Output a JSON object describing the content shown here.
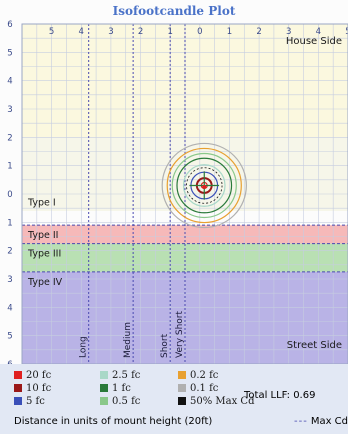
{
  "chart_data": {
    "type": "isofootcandle",
    "title": "Isofootcandle Plot",
    "x_axis_labels": [
      "5",
      "4",
      "3",
      "2",
      "1",
      "0",
      "1",
      "2",
      "3",
      "4",
      "5"
    ],
    "y_axis_labels": [
      "6",
      "5",
      "4",
      "3",
      "2",
      "1",
      "0",
      "1",
      "2",
      "3",
      "4",
      "5",
      "6"
    ],
    "xlim": [
      -6,
      5
    ],
    "ylim": [
      -6,
      6
    ],
    "house_side_label": "House Side",
    "street_side_label": "Street Side",
    "luminaire": {
      "x": 0.15,
      "y": 0.3
    },
    "max_cd_point": {
      "x": 0.15,
      "y": 0.25
    },
    "isolines": [
      {
        "value_fc": 20,
        "radius": 0.1,
        "color": "#e02020"
      },
      {
        "value_fc": 10,
        "radius": 0.25,
        "color": "#9a1818"
      },
      {
        "value_fc": 5,
        "radius": 0.45,
        "color": "#3a4fb8"
      },
      {
        "value_fc": 2.5,
        "radius": 0.7,
        "color": "#a8d8c8"
      },
      {
        "value_fc": 1,
        "radius": 0.92,
        "color": "#2a7a3a"
      },
      {
        "value_fc": 0.5,
        "radius": 1.08,
        "color": "#8ac88a"
      },
      {
        "value_fc": 0.2,
        "radius": 1.25,
        "color": "#e8a030"
      },
      {
        "value_fc": 0.1,
        "radius": 1.42,
        "color": "#b0b0b0"
      }
    ],
    "type_bands": [
      {
        "label": "Type I",
        "y_from": -0.6,
        "y_to": 2.0,
        "color": "#f4f4e4"
      },
      {
        "label": "Type II",
        "y_from": -1.75,
        "y_to": -1.1,
        "color": "#f4a8a8"
      },
      {
        "label": "Type III",
        "y_from": -2.75,
        "y_to": -1.75,
        "color": "#a8d8a0"
      },
      {
        "label": "Type IV",
        "y_from": -6.0,
        "y_to": -2.75,
        "color": "#a8a0e0"
      }
    ],
    "range_lines": [
      {
        "label": "Long",
        "x": -3.75
      },
      {
        "label": "Medium",
        "x": -2.25
      },
      {
        "label": "Short",
        "x": -1.0
      },
      {
        "label": "Very Short",
        "x": -0.5
      }
    ],
    "legend": [
      {
        "label": "20 fc",
        "color": "#e02020"
      },
      {
        "label": "10 fc",
        "color": "#9a1818"
      },
      {
        "label": "5 fc",
        "color": "#3a4fb8"
      },
      {
        "label": "2.5 fc",
        "color": "#a8d8c8"
      },
      {
        "label": "1 fc",
        "color": "#2a7a3a"
      },
      {
        "label": "0.5 fc",
        "color": "#8ac88a"
      },
      {
        "label": "0.2 fc",
        "color": "#e8a030"
      },
      {
        "label": "0.1 fc",
        "color": "#b0b0b0"
      },
      {
        "label": "50% Max Cd",
        "color": "#111111"
      }
    ],
    "grid": true
  },
  "legend_text": {
    "total_llf": "Total LLF: 0.69",
    "caption": "Distance in units of mount height (20ft)",
    "max_cd_line": "Max Cd"
  }
}
